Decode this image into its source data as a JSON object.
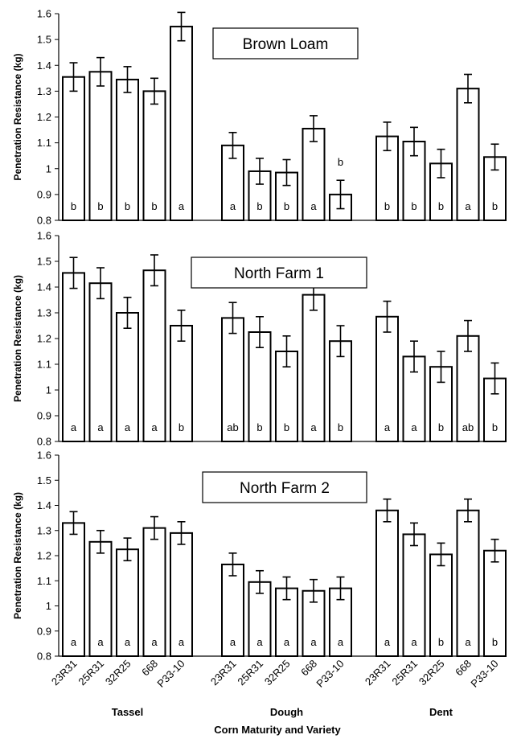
{
  "chart_data": [
    {
      "type": "bar",
      "title": "Brown Loam",
      "ylabel": "Penetration Resistance (kg)",
      "ylim": [
        0.8,
        1.6
      ],
      "yticks": [
        "0.8",
        "0.9",
        "1",
        "1.1",
        "1.2",
        "1.3",
        "1.4",
        "1.5",
        "1.6"
      ],
      "groups": [
        {
          "name": "Tassel",
          "categories": [
            "23R31",
            "25R31",
            "32R25",
            "668",
            "P33-10"
          ],
          "values": [
            1.355,
            1.375,
            1.345,
            1.3,
            1.55
          ],
          "errors": [
            0.055,
            0.055,
            0.05,
            0.05,
            0.055
          ],
          "letters": [
            "b",
            "b",
            "b",
            "b",
            "a"
          ]
        },
        {
          "name": "Dough",
          "categories": [
            "23R31",
            "25R31",
            "32R25",
            "668",
            "P33-10"
          ],
          "values": [
            1.09,
            0.99,
            0.985,
            1.155,
            0.9
          ],
          "errors": [
            0.05,
            0.05,
            0.05,
            0.05,
            0.055
          ],
          "letters": [
            "a",
            "b",
            "b",
            "a",
            "b"
          ]
        },
        {
          "name": "Dent",
          "categories": [
            "23R31",
            "25R31",
            "32R25",
            "668",
            "P33-10"
          ],
          "values": [
            1.125,
            1.105,
            1.02,
            1.31,
            1.045
          ],
          "errors": [
            0.055,
            0.055,
            0.055,
            0.055,
            0.05
          ],
          "letters": [
            "b",
            "b",
            "b",
            "a",
            "b"
          ]
        }
      ]
    },
    {
      "type": "bar",
      "title": "North Farm 1",
      "ylabel": "Penetration Resistance (kg)",
      "ylim": [
        0.8,
        1.6
      ],
      "yticks": [
        "0.8",
        "0.9",
        "1",
        "1.1",
        "1.2",
        "1.3",
        "1.4",
        "1.5",
        "1.6"
      ],
      "groups": [
        {
          "name": "Tassel",
          "categories": [
            "23R31",
            "25R31",
            "32R25",
            "668",
            "P33-10"
          ],
          "values": [
            1.455,
            1.415,
            1.3,
            1.465,
            1.25
          ],
          "errors": [
            0.06,
            0.06,
            0.06,
            0.06,
            0.06
          ],
          "letters": [
            "a",
            "a",
            "a",
            "a",
            "b"
          ]
        },
        {
          "name": "Dough",
          "categories": [
            "23R31",
            "25R31",
            "32R25",
            "668",
            "P33-10"
          ],
          "values": [
            1.28,
            1.225,
            1.15,
            1.37,
            1.19
          ],
          "errors": [
            0.06,
            0.06,
            0.06,
            0.06,
            0.06
          ],
          "letters": [
            "ab",
            "b",
            "b",
            "a",
            "b"
          ]
        },
        {
          "name": "Dent",
          "categories": [
            "23R31",
            "25R31",
            "32R25",
            "668",
            "P33-10"
          ],
          "values": [
            1.285,
            1.13,
            1.09,
            1.21,
            1.045
          ],
          "errors": [
            0.06,
            0.06,
            0.06,
            0.06,
            0.06
          ],
          "letters": [
            "a",
            "a",
            "b",
            "ab",
            "b"
          ]
        }
      ]
    },
    {
      "type": "bar",
      "title": "North Farm 2",
      "ylabel": "Penetration Resistance (kg)",
      "ylim": [
        0.8,
        1.6
      ],
      "yticks": [
        "0.8",
        "0.9",
        "1",
        "1.1",
        "1.2",
        "1.3",
        "1.4",
        "1.5",
        "1.6"
      ],
      "groups": [
        {
          "name": "Tassel",
          "categories": [
            "23R31",
            "25R31",
            "32R25",
            "668",
            "P33-10"
          ],
          "values": [
            1.33,
            1.255,
            1.225,
            1.31,
            1.29
          ],
          "errors": [
            0.045,
            0.045,
            0.045,
            0.045,
            0.045
          ],
          "letters": [
            "a",
            "a",
            "a",
            "a",
            "a"
          ]
        },
        {
          "name": "Dough",
          "categories": [
            "23R31",
            "25R31",
            "32R25",
            "668",
            "P33-10"
          ],
          "values": [
            1.165,
            1.095,
            1.07,
            1.06,
            1.07
          ],
          "errors": [
            0.045,
            0.045,
            0.045,
            0.045,
            0.045
          ],
          "letters": [
            "a",
            "a",
            "a",
            "a",
            "a"
          ]
        },
        {
          "name": "Dent",
          "categories": [
            "23R31",
            "25R31",
            "32R25",
            "668",
            "P33-10"
          ],
          "values": [
            1.38,
            1.285,
            1.205,
            1.38,
            1.22
          ],
          "errors": [
            0.045,
            0.045,
            0.045,
            0.045,
            0.045
          ],
          "letters": [
            "a",
            "a",
            "b",
            "a",
            "b"
          ]
        }
      ]
    }
  ],
  "xlabel": "Corn Maturity and Variety"
}
